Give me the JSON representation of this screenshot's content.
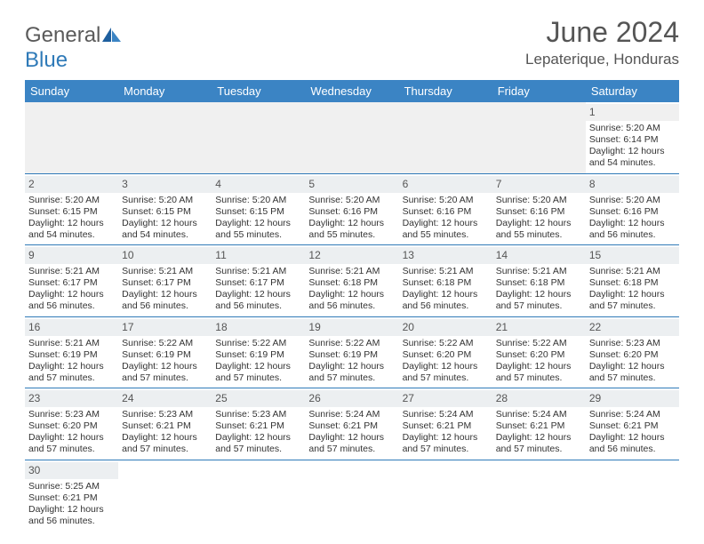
{
  "logo": {
    "word1": "General",
    "word2": "Blue"
  },
  "title": "June 2024",
  "location": "Lepaterique, Honduras",
  "colors": {
    "header_bg": "#3b84c4",
    "header_text": "#ffffff",
    "dayrow_bg": "#eceff1",
    "cell_border": "#2f7ab8",
    "text": "#333333",
    "title_text": "#555555"
  },
  "typography": {
    "title_fontsize": 32,
    "location_fontsize": 17,
    "th_fontsize": 13,
    "cell_fontsize": 10.5
  },
  "weekdays": [
    "Sunday",
    "Monday",
    "Tuesday",
    "Wednesday",
    "Thursday",
    "Friday",
    "Saturday"
  ],
  "weeks": [
    [
      null,
      null,
      null,
      null,
      null,
      null,
      {
        "n": "1",
        "rise": "Sunrise: 5:20 AM",
        "set": "Sunset: 6:14 PM",
        "d1": "Daylight: 12 hours",
        "d2": "and 54 minutes."
      }
    ],
    [
      {
        "n": "2",
        "rise": "Sunrise: 5:20 AM",
        "set": "Sunset: 6:15 PM",
        "d1": "Daylight: 12 hours",
        "d2": "and 54 minutes."
      },
      {
        "n": "3",
        "rise": "Sunrise: 5:20 AM",
        "set": "Sunset: 6:15 PM",
        "d1": "Daylight: 12 hours",
        "d2": "and 54 minutes."
      },
      {
        "n": "4",
        "rise": "Sunrise: 5:20 AM",
        "set": "Sunset: 6:15 PM",
        "d1": "Daylight: 12 hours",
        "d2": "and 55 minutes."
      },
      {
        "n": "5",
        "rise": "Sunrise: 5:20 AM",
        "set": "Sunset: 6:16 PM",
        "d1": "Daylight: 12 hours",
        "d2": "and 55 minutes."
      },
      {
        "n": "6",
        "rise": "Sunrise: 5:20 AM",
        "set": "Sunset: 6:16 PM",
        "d1": "Daylight: 12 hours",
        "d2": "and 55 minutes."
      },
      {
        "n": "7",
        "rise": "Sunrise: 5:20 AM",
        "set": "Sunset: 6:16 PM",
        "d1": "Daylight: 12 hours",
        "d2": "and 55 minutes."
      },
      {
        "n": "8",
        "rise": "Sunrise: 5:20 AM",
        "set": "Sunset: 6:16 PM",
        "d1": "Daylight: 12 hours",
        "d2": "and 56 minutes."
      }
    ],
    [
      {
        "n": "9",
        "rise": "Sunrise: 5:21 AM",
        "set": "Sunset: 6:17 PM",
        "d1": "Daylight: 12 hours",
        "d2": "and 56 minutes."
      },
      {
        "n": "10",
        "rise": "Sunrise: 5:21 AM",
        "set": "Sunset: 6:17 PM",
        "d1": "Daylight: 12 hours",
        "d2": "and 56 minutes."
      },
      {
        "n": "11",
        "rise": "Sunrise: 5:21 AM",
        "set": "Sunset: 6:17 PM",
        "d1": "Daylight: 12 hours",
        "d2": "and 56 minutes."
      },
      {
        "n": "12",
        "rise": "Sunrise: 5:21 AM",
        "set": "Sunset: 6:18 PM",
        "d1": "Daylight: 12 hours",
        "d2": "and 56 minutes."
      },
      {
        "n": "13",
        "rise": "Sunrise: 5:21 AM",
        "set": "Sunset: 6:18 PM",
        "d1": "Daylight: 12 hours",
        "d2": "and 56 minutes."
      },
      {
        "n": "14",
        "rise": "Sunrise: 5:21 AM",
        "set": "Sunset: 6:18 PM",
        "d1": "Daylight: 12 hours",
        "d2": "and 57 minutes."
      },
      {
        "n": "15",
        "rise": "Sunrise: 5:21 AM",
        "set": "Sunset: 6:18 PM",
        "d1": "Daylight: 12 hours",
        "d2": "and 57 minutes."
      }
    ],
    [
      {
        "n": "16",
        "rise": "Sunrise: 5:21 AM",
        "set": "Sunset: 6:19 PM",
        "d1": "Daylight: 12 hours",
        "d2": "and 57 minutes."
      },
      {
        "n": "17",
        "rise": "Sunrise: 5:22 AM",
        "set": "Sunset: 6:19 PM",
        "d1": "Daylight: 12 hours",
        "d2": "and 57 minutes."
      },
      {
        "n": "18",
        "rise": "Sunrise: 5:22 AM",
        "set": "Sunset: 6:19 PM",
        "d1": "Daylight: 12 hours",
        "d2": "and 57 minutes."
      },
      {
        "n": "19",
        "rise": "Sunrise: 5:22 AM",
        "set": "Sunset: 6:19 PM",
        "d1": "Daylight: 12 hours",
        "d2": "and 57 minutes."
      },
      {
        "n": "20",
        "rise": "Sunrise: 5:22 AM",
        "set": "Sunset: 6:20 PM",
        "d1": "Daylight: 12 hours",
        "d2": "and 57 minutes."
      },
      {
        "n": "21",
        "rise": "Sunrise: 5:22 AM",
        "set": "Sunset: 6:20 PM",
        "d1": "Daylight: 12 hours",
        "d2": "and 57 minutes."
      },
      {
        "n": "22",
        "rise": "Sunrise: 5:23 AM",
        "set": "Sunset: 6:20 PM",
        "d1": "Daylight: 12 hours",
        "d2": "and 57 minutes."
      }
    ],
    [
      {
        "n": "23",
        "rise": "Sunrise: 5:23 AM",
        "set": "Sunset: 6:20 PM",
        "d1": "Daylight: 12 hours",
        "d2": "and 57 minutes."
      },
      {
        "n": "24",
        "rise": "Sunrise: 5:23 AM",
        "set": "Sunset: 6:21 PM",
        "d1": "Daylight: 12 hours",
        "d2": "and 57 minutes."
      },
      {
        "n": "25",
        "rise": "Sunrise: 5:23 AM",
        "set": "Sunset: 6:21 PM",
        "d1": "Daylight: 12 hours",
        "d2": "and 57 minutes."
      },
      {
        "n": "26",
        "rise": "Sunrise: 5:24 AM",
        "set": "Sunset: 6:21 PM",
        "d1": "Daylight: 12 hours",
        "d2": "and 57 minutes."
      },
      {
        "n": "27",
        "rise": "Sunrise: 5:24 AM",
        "set": "Sunset: 6:21 PM",
        "d1": "Daylight: 12 hours",
        "d2": "and 57 minutes."
      },
      {
        "n": "28",
        "rise": "Sunrise: 5:24 AM",
        "set": "Sunset: 6:21 PM",
        "d1": "Daylight: 12 hours",
        "d2": "and 57 minutes."
      },
      {
        "n": "29",
        "rise": "Sunrise: 5:24 AM",
        "set": "Sunset: 6:21 PM",
        "d1": "Daylight: 12 hours",
        "d2": "and 56 minutes."
      }
    ],
    [
      {
        "n": "30",
        "rise": "Sunrise: 5:25 AM",
        "set": "Sunset: 6:21 PM",
        "d1": "Daylight: 12 hours",
        "d2": "and 56 minutes."
      },
      null,
      null,
      null,
      null,
      null,
      null
    ]
  ]
}
